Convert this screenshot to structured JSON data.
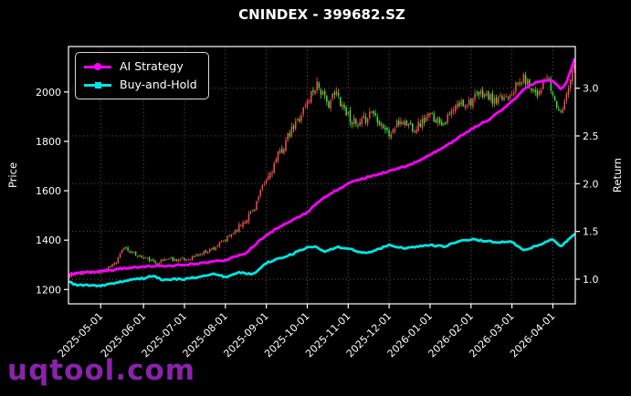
{
  "watermark": {
    "text": "uqtool.com",
    "color": "#8923a8"
  },
  "chart_data": {
    "type": "candlestick",
    "title": "CNINDEX - 399682.SZ",
    "ylabel_left": "Price",
    "ylabel_right": "Return",
    "grid": true,
    "background": "#000000",
    "x_tick_labels": [
      "2025-05-01",
      "2025-06-01",
      "2025-07-01",
      "2025-08-01",
      "2025-09-01",
      "2025-10-01",
      "2025-11-01",
      "2025-12-01",
      "2026-01-01",
      "2026-02-01",
      "2026-03-01",
      "2026-04-01"
    ],
    "y_left_ticks": [
      1200,
      1400,
      1600,
      1800,
      2000
    ],
    "y_right_ticks": [
      1.0,
      1.5,
      2.0,
      2.5,
      3.0
    ],
    "y_left_range": [
      1142,
      2184
    ],
    "y_right_range": [
      0.742,
      3.436
    ],
    "num_days": 260,
    "month_tick_days": [
      16,
      38,
      59,
      80,
      101,
      122,
      143,
      164,
      185,
      206,
      227,
      248
    ],
    "legend": {
      "position": "upper-left",
      "entries": [
        {
          "label": "AI Strategy",
          "color": "#ff00ff",
          "marker": "circle"
        },
        {
          "label": "Buy-and-Hold",
          "color": "#00e6e6",
          "marker": "square"
        }
      ]
    },
    "candle_up_color": "#f0504e",
    "candle_down_color": "#3ce03c",
    "grid_color": "rgba(255,255,255,0.38)",
    "noise_seed": 11,
    "volatility_anchors": [
      [
        0,
        0.006
      ],
      [
        80,
        0.008
      ],
      [
        100,
        0.015
      ],
      [
        135,
        0.014
      ],
      [
        259,
        0.011
      ]
    ],
    "price_close_anchors": [
      [
        0,
        1255
      ],
      [
        6,
        1268
      ],
      [
        16,
        1272
      ],
      [
        24,
        1310
      ],
      [
        28,
        1372
      ],
      [
        33,
        1345
      ],
      [
        38,
        1330
      ],
      [
        44,
        1308
      ],
      [
        50,
        1325
      ],
      [
        59,
        1320
      ],
      [
        66,
        1340
      ],
      [
        74,
        1368
      ],
      [
        80,
        1400
      ],
      [
        87,
        1455
      ],
      [
        94,
        1520
      ],
      [
        101,
        1640
      ],
      [
        108,
        1755
      ],
      [
        115,
        1855
      ],
      [
        122,
        1960
      ],
      [
        127,
        2040
      ],
      [
        132,
        1950
      ],
      [
        137,
        1995
      ],
      [
        143,
        1905
      ],
      [
        148,
        1855
      ],
      [
        155,
        1925
      ],
      [
        160,
        1875
      ],
      [
        164,
        1825
      ],
      [
        170,
        1885
      ],
      [
        177,
        1855
      ],
      [
        185,
        1905
      ],
      [
        192,
        1875
      ],
      [
        199,
        1945
      ],
      [
        206,
        1965
      ],
      [
        212,
        1995
      ],
      [
        219,
        1955
      ],
      [
        227,
        2005
      ],
      [
        233,
        2055
      ],
      [
        240,
        1995
      ],
      [
        245,
        2060
      ],
      [
        248,
        1985
      ],
      [
        252,
        1905
      ],
      [
        255,
        1995
      ],
      [
        259,
        2125
      ]
    ],
    "ai_strategy_anchors": [
      [
        0,
        1.05
      ],
      [
        5,
        1.07
      ],
      [
        16,
        1.08
      ],
      [
        26,
        1.11
      ],
      [
        38,
        1.13
      ],
      [
        48,
        1.14
      ],
      [
        59,
        1.15
      ],
      [
        69,
        1.17
      ],
      [
        80,
        1.2
      ],
      [
        90,
        1.27
      ],
      [
        101,
        1.46
      ],
      [
        108,
        1.55
      ],
      [
        115,
        1.62
      ],
      [
        122,
        1.7
      ],
      [
        130,
        1.85
      ],
      [
        136,
        1.92
      ],
      [
        143,
        2.0
      ],
      [
        153,
        2.07
      ],
      [
        164,
        2.13
      ],
      [
        174,
        2.19
      ],
      [
        185,
        2.3
      ],
      [
        195,
        2.42
      ],
      [
        206,
        2.57
      ],
      [
        216,
        2.68
      ],
      [
        227,
        2.86
      ],
      [
        234,
        3.0
      ],
      [
        240,
        3.07
      ],
      [
        248,
        3.08
      ],
      [
        252,
        2.99
      ],
      [
        255,
        3.06
      ],
      [
        259,
        3.3
      ]
    ],
    "buy_and_hold_anchors": [
      [
        0,
        0.97
      ],
      [
        3,
        0.94
      ],
      [
        16,
        0.93
      ],
      [
        24,
        0.96
      ],
      [
        32,
        1.0
      ],
      [
        38,
        1.01
      ],
      [
        43,
        1.04
      ],
      [
        48,
        0.99
      ],
      [
        54,
        1.0
      ],
      [
        59,
        1.0
      ],
      [
        68,
        1.03
      ],
      [
        74,
        1.06
      ],
      [
        80,
        1.02
      ],
      [
        87,
        1.07
      ],
      [
        94,
        1.05
      ],
      [
        101,
        1.17
      ],
      [
        108,
        1.22
      ],
      [
        115,
        1.27
      ],
      [
        122,
        1.33
      ],
      [
        126,
        1.34
      ],
      [
        131,
        1.28
      ],
      [
        137,
        1.34
      ],
      [
        143,
        1.32
      ],
      [
        152,
        1.27
      ],
      [
        158,
        1.31
      ],
      [
        164,
        1.36
      ],
      [
        172,
        1.32
      ],
      [
        185,
        1.36
      ],
      [
        192,
        1.34
      ],
      [
        199,
        1.39
      ],
      [
        206,
        1.42
      ],
      [
        213,
        1.4
      ],
      [
        220,
        1.39
      ],
      [
        227,
        1.39
      ],
      [
        233,
        1.3
      ],
      [
        241,
        1.36
      ],
      [
        248,
        1.42
      ],
      [
        252,
        1.34
      ],
      [
        259,
        1.47
      ]
    ]
  }
}
